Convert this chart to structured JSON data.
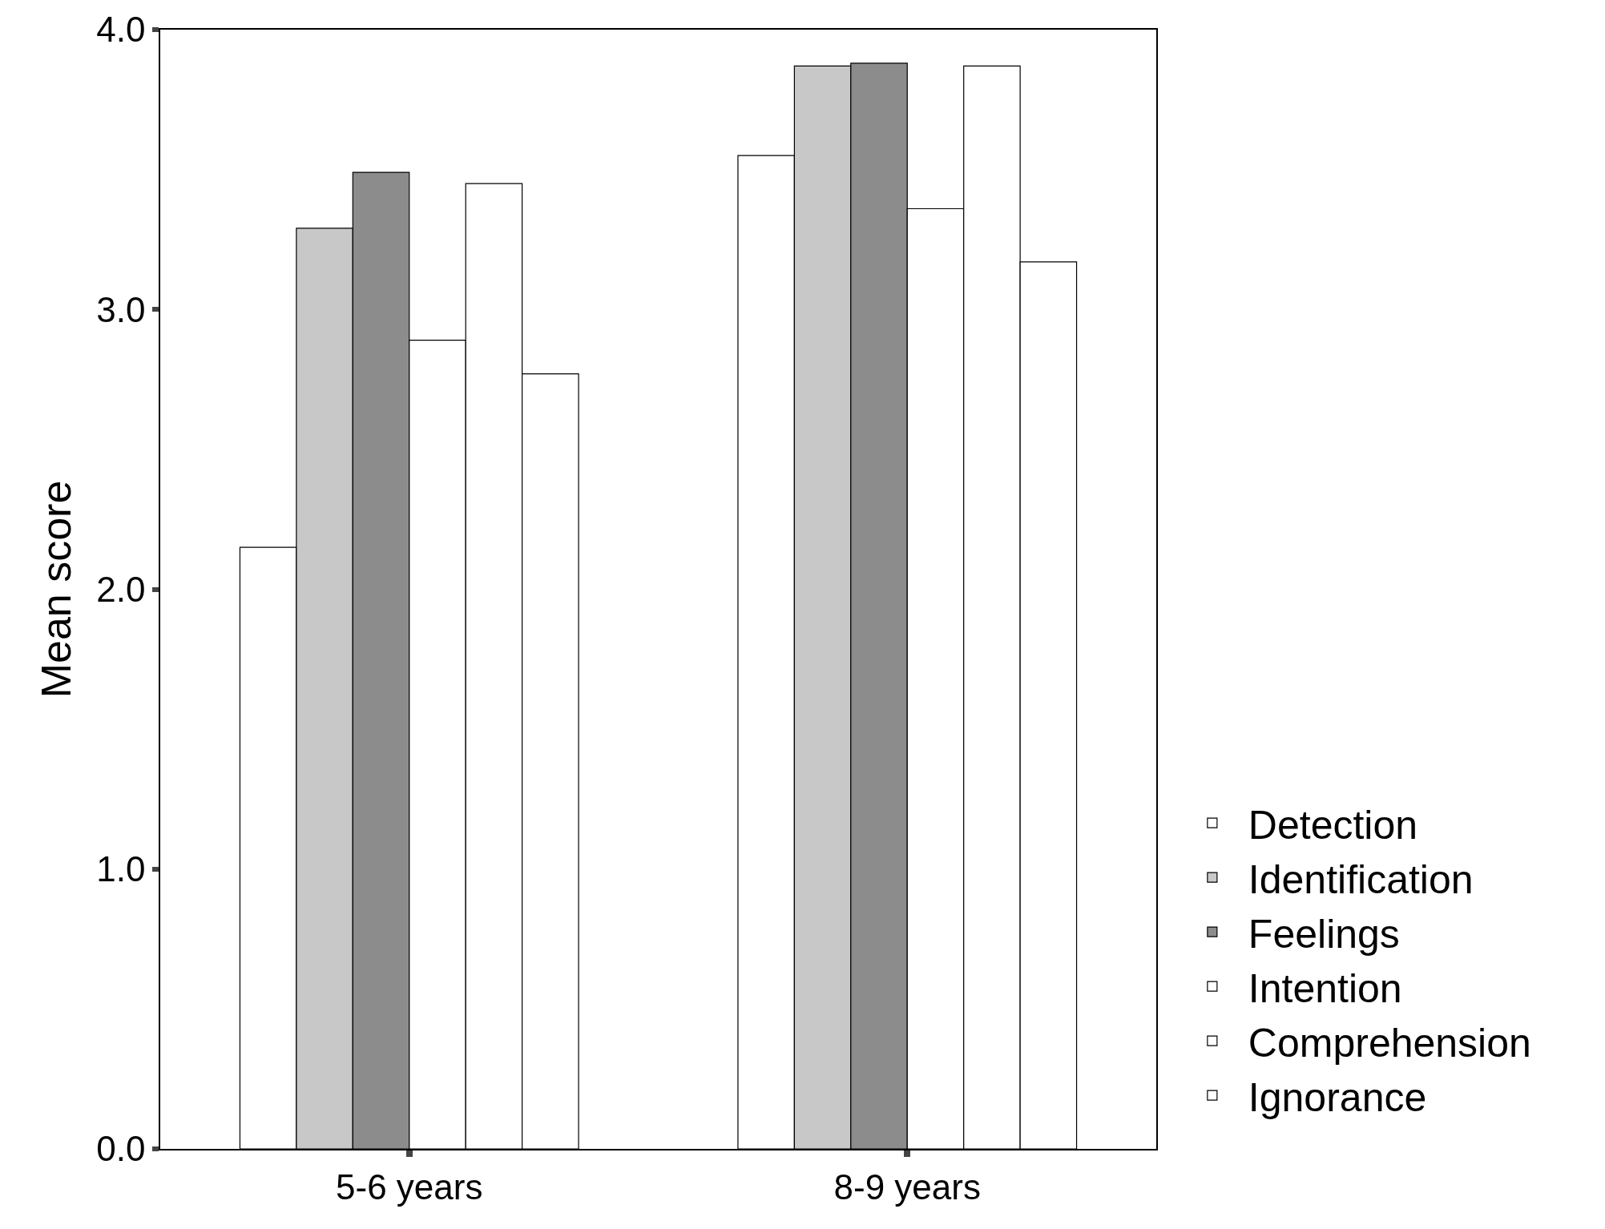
{
  "chart_data": {
    "type": "bar",
    "ylabel": "Mean score",
    "categories": [
      "5-6 years",
      "8-9 years"
    ],
    "ylim": [
      0,
      4
    ],
    "yticks": [
      {
        "value": 0,
        "label": "0.0"
      },
      {
        "value": 1,
        "label": "1.0"
      },
      {
        "value": 2,
        "label": "2.0"
      },
      {
        "value": 3,
        "label": "3.0"
      },
      {
        "value": 4,
        "label": "4.0"
      }
    ],
    "legend": "right",
    "series": [
      {
        "name": "Detection",
        "color": "#ffffff",
        "values": [
          2.15,
          3.55
        ]
      },
      {
        "name": "Identification",
        "color": "#c8c8c8",
        "values": [
          3.29,
          3.87
        ]
      },
      {
        "name": "Feelings",
        "color": "#8c8c8c",
        "values": [
          3.49,
          3.88
        ]
      },
      {
        "name": "Intention",
        "color": "#ffffff",
        "values": [
          2.89,
          3.36
        ]
      },
      {
        "name": "Comprehension",
        "color": "#ffffff",
        "values": [
          3.45,
          3.87
        ]
      },
      {
        "name": "Ignorance",
        "color": "#ffffff",
        "values": [
          2.77,
          3.17
        ]
      }
    ]
  }
}
